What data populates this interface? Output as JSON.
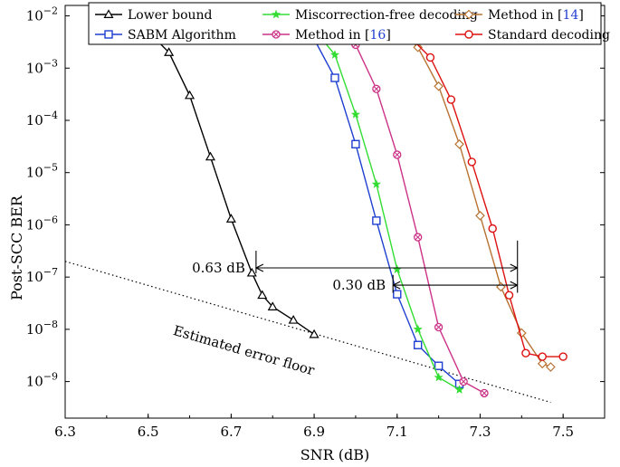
{
  "chart_data": {
    "type": "line",
    "xlabel": "SNR (dB)",
    "ylabel": "Post-SCC BER",
    "xlim": [
      6.3,
      7.6
    ],
    "ylim_exp": [
      -9.7,
      -1.8
    ],
    "yscale": "log",
    "xticks": [
      6.3,
      6.5,
      6.7,
      6.9,
      7.1,
      7.3,
      7.5
    ],
    "yticks_exp": [
      -2,
      -3,
      -4,
      -5,
      -6,
      -7,
      -8,
      -9
    ],
    "legend_position": "top",
    "series": [
      {
        "name": "Lower bound",
        "color": "#000000",
        "marker": "triangle",
        "x": [
          6.4,
          6.45,
          6.5,
          6.55,
          6.6,
          6.65,
          6.7,
          6.75,
          6.775,
          6.8,
          6.85,
          6.9
        ],
        "y": [
          0.009,
          0.0075,
          0.005,
          0.002,
          0.0003,
          2e-05,
          1.3e-06,
          1.2e-07,
          4.5e-08,
          2.7e-08,
          1.5e-08,
          8e-09
        ]
      },
      {
        "name": "SABM Algorithm",
        "color": "#1f3fd1",
        "marker": "square",
        "x": [
          6.75,
          6.8,
          6.85,
          6.9,
          6.95,
          7.0,
          7.05,
          7.1,
          7.15,
          7.2,
          7.25
        ],
        "y": [
          0.01,
          0.0085,
          0.0065,
          0.0036,
          0.00065,
          3.5e-05,
          1.2e-06,
          4.7e-08,
          5e-09,
          2e-09,
          9e-10
        ]
      },
      {
        "name": "Miscorrection-free decoding",
        "color": "#33dd33",
        "marker": "star",
        "x": [
          6.8,
          6.85,
          6.9,
          6.95,
          7.0,
          7.05,
          7.1,
          7.15,
          7.2,
          7.25
        ],
        "y": [
          0.0085,
          0.007,
          0.0055,
          0.0018,
          0.00013,
          6e-06,
          1.4e-07,
          1e-08,
          1.2e-09,
          7e-10
        ]
      },
      {
        "name": "Method in [16]",
        "color": "#cc3388",
        "marker": "circle-x",
        "x": [
          6.92,
          6.96,
          7.0,
          7.05,
          7.1,
          7.15,
          7.2,
          7.26,
          7.31
        ],
        "y": [
          0.0085,
          0.006,
          0.0028,
          0.0004,
          2.2e-05,
          5.8e-07,
          1.1e-08,
          1e-09,
          6e-10
        ]
      },
      {
        "name": "Method in [14]",
        "color": "#b87333",
        "marker": "diamond",
        "x": [
          6.98,
          7.05,
          7.1,
          7.15,
          7.2,
          7.25,
          7.3,
          7.35,
          7.4,
          7.45,
          7.47
        ],
        "y": [
          0.0085,
          0.0075,
          0.006,
          0.0025,
          0.00045,
          3.5e-05,
          1.5e-06,
          6.5e-08,
          8.5e-09,
          2.2e-09,
          1.9e-09
        ]
      },
      {
        "name": "Standard decoding",
        "color": "#dd1111",
        "marker": "circle",
        "x": [
          7.03,
          7.08,
          7.13,
          7.18,
          7.23,
          7.28,
          7.33,
          7.37,
          7.41,
          7.45,
          7.5
        ],
        "y": [
          0.0075,
          0.006,
          0.004,
          0.0016,
          0.00025,
          1.6e-05,
          8.5e-07,
          4.5e-08,
          3.5e-09,
          3e-09,
          3e-09
        ]
      }
    ],
    "error_floor": {
      "label": "Estimated error floor",
      "x": [
        6.3,
        7.47
      ],
      "y": [
        2e-07,
        4e-10
      ]
    },
    "annotations": [
      {
        "label": "0.63 dB",
        "x_from": 6.76,
        "x_to": 7.39,
        "y": 1.5e-07
      },
      {
        "label": "0.30 dB",
        "x_from": 7.09,
        "x_to": 7.39,
        "y": 7e-08
      }
    ]
  }
}
